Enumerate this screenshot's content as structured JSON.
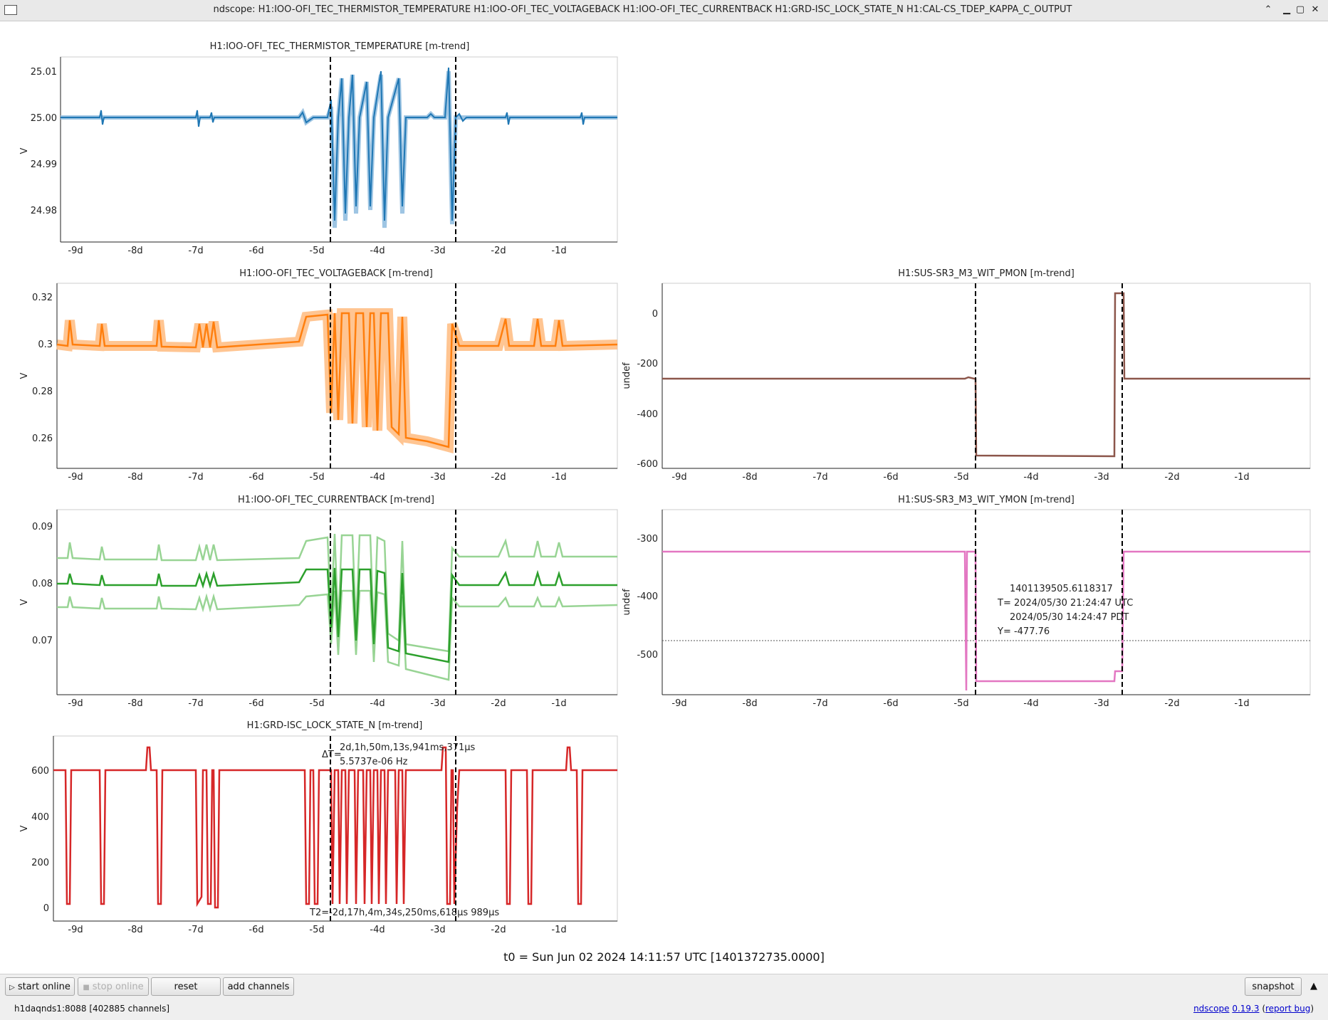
{
  "window": {
    "title": "ndscope: H1:IOO-OFI_TEC_THERMISTOR_TEMPERATURE H1:IOO-OFI_TEC_VOLTAGEBACK H1:IOO-OFI_TEC_CURRENTBACK H1:GRD-ISC_LOCK_STATE_N H1:CAL-CS_TDEP_KAPPA_C_OUTPUT",
    "minimize_glyph": "⌃",
    "min_glyph": "▁",
    "max_glyph": "▢",
    "close_glyph": "✕"
  },
  "x_ticks": [
    "-9d",
    "-8d",
    "-7d",
    "-6d",
    "-5d",
    "-4d",
    "-3d",
    "-2d",
    "-1d"
  ],
  "plots": [
    {
      "id": "temp",
      "title": "H1:IOO-OFI_TEC_THERMISTOR_TEMPERATURE [m-trend]",
      "ylabel": "V",
      "y_ticks": [
        "25.01",
        "25.00",
        "24.99",
        "24.98"
      ],
      "color": "#1f77b4",
      "band_color": "#9ec5e3"
    },
    {
      "id": "volt",
      "title": "H1:IOO-OFI_TEC_VOLTAGEBACK [m-trend]",
      "ylabel": "V",
      "y_ticks": [
        "0.32",
        "0.3",
        "0.28",
        "0.26"
      ],
      "color": "#ff7f0e",
      "band_color": "#ffbf86"
    },
    {
      "id": "pmon",
      "title": "H1:SUS-SR3_M3_WIT_PMON [m-trend]",
      "ylabel": "undef",
      "y_ticks": [
        "0",
        "-200",
        "-400",
        "-600"
      ],
      "color": "#8c564b",
      "band_color": "#c49c94"
    },
    {
      "id": "curr",
      "title": "H1:IOO-OFI_TEC_CURRENTBACK [m-trend]",
      "ylabel": "V",
      "y_ticks": [
        "0.09",
        "0.08",
        "0.07"
      ],
      "color": "#2ca02c",
      "band_color": "#98d494"
    },
    {
      "id": "ymon",
      "title": "H1:SUS-SR3_M3_WIT_YMON [m-trend]",
      "ylabel": "undef",
      "y_ticks": [
        "-300",
        "-400",
        "-500"
      ],
      "color": "#e377c2",
      "band_color": "#f2b6e0"
    },
    {
      "id": "lock",
      "title": "H1:GRD-ISC_LOCK_STATE_N [m-trend]",
      "ylabel": "V",
      "y_ticks": [
        "600",
        "400",
        "200",
        "0"
      ],
      "color": "#d62728",
      "band_color": "#f4a3a3"
    }
  ],
  "cursor_readout": {
    "gps": "1401139505.6118317",
    "utc": "T= 2024/05/30 21:24:47 UTC",
    "pdt": "2024/05/30 14:24:47 PDT",
    "y": "Y= -477.76"
  },
  "delta_t": {
    "label": "ΔT=",
    "value": "2d,1h,50m,13s,941ms,371μs",
    "freq": "5.5737e-06 Hz"
  },
  "t2": "T2=-2d,17h,4m,34s,250ms,618μs 989μs",
  "t0": "t0 = Sun Jun 02 2024 14:11:57 UTC [1401372735.0000]",
  "toolbar": {
    "start_online": "start online",
    "stop_online": "stop online",
    "reset": "reset",
    "add_channels": "add channels",
    "snapshot": "snapshot",
    "collapse_glyph": "▲"
  },
  "status": {
    "server": "h1daqnds1:8088  [402885 channels]",
    "app": "ndscope",
    "version": "0.19.3",
    "report": "report bug"
  },
  "colors": {
    "cursor_line": "#000000",
    "grid": "#e6e6e6"
  }
}
